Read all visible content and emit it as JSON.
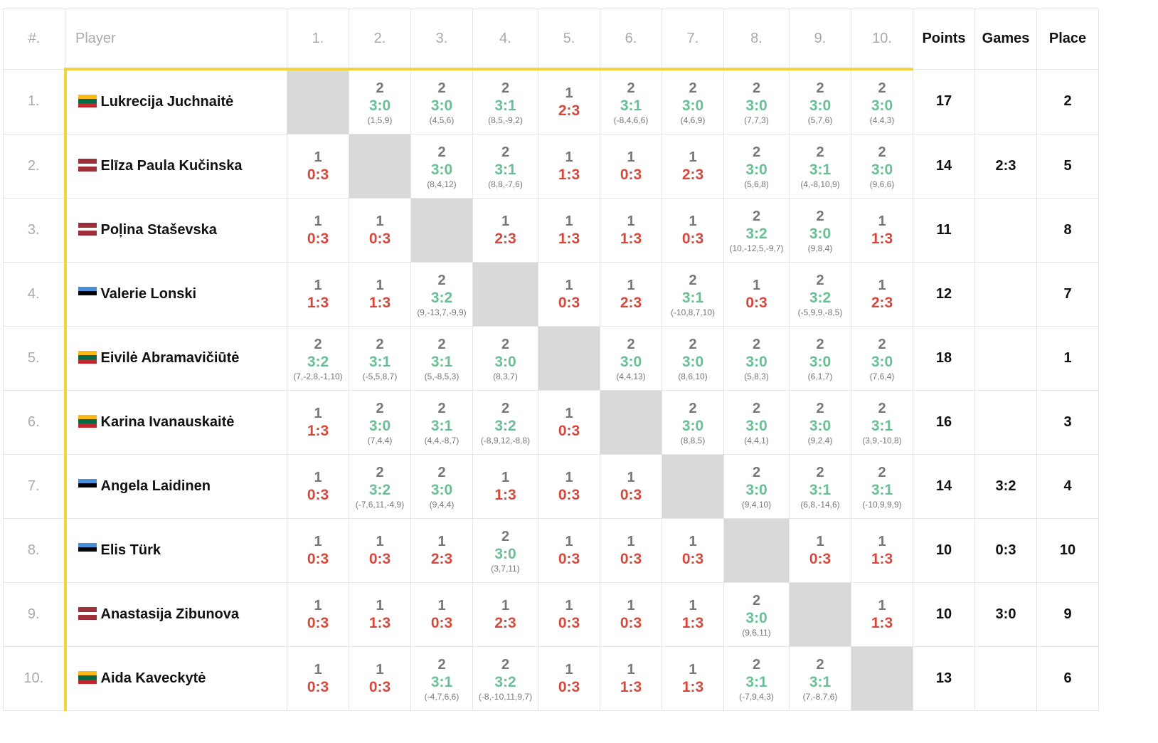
{
  "header": {
    "num": "#.",
    "player": "Player",
    "cols": [
      "1.",
      "2.",
      "3.",
      "4.",
      "5.",
      "6.",
      "7.",
      "8.",
      "9.",
      "10."
    ],
    "points": "Points",
    "games": "Games",
    "place": "Place"
  },
  "colors": {
    "win": "#6cbf94",
    "loss": "#d6483b",
    "highlight": "#f2d53c",
    "diagonal": "#d9d9d9"
  },
  "rows": [
    {
      "num": "1.",
      "name": "Lukrecija Juchnaitė",
      "flag": "lithuania-flag",
      "results": [
        null,
        {
          "pts": "2",
          "score": "3:0",
          "sets": "(1,5,9)"
        },
        {
          "pts": "2",
          "score": "3:0",
          "sets": "(4,5,6)"
        },
        {
          "pts": "2",
          "score": "3:1",
          "sets": "(8,5,-9,2)"
        },
        {
          "pts": "1",
          "score": "2:3",
          "sets": ""
        },
        {
          "pts": "2",
          "score": "3:1",
          "sets": "(-8,4,6,6)"
        },
        {
          "pts": "2",
          "score": "3:0",
          "sets": "(4,6,9)"
        },
        {
          "pts": "2",
          "score": "3:0",
          "sets": "(7,7,3)"
        },
        {
          "pts": "2",
          "score": "3:0",
          "sets": "(5,7,6)"
        },
        {
          "pts": "2",
          "score": "3:0",
          "sets": "(4,4,3)"
        }
      ],
      "points": "17",
      "games": "",
      "place": "2"
    },
    {
      "num": "2.",
      "name": "Elīza Paula Kučinska",
      "flag": "latvia-flag",
      "results": [
        {
          "pts": "1",
          "score": "0:3",
          "sets": ""
        },
        null,
        {
          "pts": "2",
          "score": "3:0",
          "sets": "(8,4,12)"
        },
        {
          "pts": "2",
          "score": "3:1",
          "sets": "(8,8,-7,6)"
        },
        {
          "pts": "1",
          "score": "1:3",
          "sets": ""
        },
        {
          "pts": "1",
          "score": "0:3",
          "sets": ""
        },
        {
          "pts": "1",
          "score": "2:3",
          "sets": ""
        },
        {
          "pts": "2",
          "score": "3:0",
          "sets": "(5,6,8)"
        },
        {
          "pts": "2",
          "score": "3:1",
          "sets": "(4,-8,10,9)"
        },
        {
          "pts": "2",
          "score": "3:0",
          "sets": "(9,6,6)"
        }
      ],
      "points": "14",
      "games": "2:3",
      "place": "5"
    },
    {
      "num": "3.",
      "name": "Poļina Staševska",
      "flag": "latvia-flag",
      "results": [
        {
          "pts": "1",
          "score": "0:3",
          "sets": ""
        },
        {
          "pts": "1",
          "score": "0:3",
          "sets": ""
        },
        null,
        {
          "pts": "1",
          "score": "2:3",
          "sets": ""
        },
        {
          "pts": "1",
          "score": "1:3",
          "sets": ""
        },
        {
          "pts": "1",
          "score": "1:3",
          "sets": ""
        },
        {
          "pts": "1",
          "score": "0:3",
          "sets": ""
        },
        {
          "pts": "2",
          "score": "3:2",
          "sets": "(10,-12,5,-9,7)"
        },
        {
          "pts": "2",
          "score": "3:0",
          "sets": "(9,8,4)"
        },
        {
          "pts": "1",
          "score": "1:3",
          "sets": ""
        }
      ],
      "points": "11",
      "games": "",
      "place": "8"
    },
    {
      "num": "4.",
      "name": "Valerie Lonski",
      "flag": "estonia-flag",
      "results": [
        {
          "pts": "1",
          "score": "1:3",
          "sets": ""
        },
        {
          "pts": "1",
          "score": "1:3",
          "sets": ""
        },
        {
          "pts": "2",
          "score": "3:2",
          "sets": "(9,-13,7,-9,9)"
        },
        null,
        {
          "pts": "1",
          "score": "0:3",
          "sets": ""
        },
        {
          "pts": "1",
          "score": "2:3",
          "sets": ""
        },
        {
          "pts": "2",
          "score": "3:1",
          "sets": "(-10,8,7,10)"
        },
        {
          "pts": "1",
          "score": "0:3",
          "sets": ""
        },
        {
          "pts": "2",
          "score": "3:2",
          "sets": "(-5,9,9,-8,5)"
        },
        {
          "pts": "1",
          "score": "2:3",
          "sets": ""
        }
      ],
      "points": "12",
      "games": "",
      "place": "7"
    },
    {
      "num": "5.",
      "name": "Eivilė Abramavičiūtė",
      "flag": "lithuania-flag",
      "results": [
        {
          "pts": "2",
          "score": "3:2",
          "sets": "(7,-2,8,-1,10)"
        },
        {
          "pts": "2",
          "score": "3:1",
          "sets": "(-5,5,8,7)"
        },
        {
          "pts": "2",
          "score": "3:1",
          "sets": "(5,-8,5,3)"
        },
        {
          "pts": "2",
          "score": "3:0",
          "sets": "(8,3,7)"
        },
        null,
        {
          "pts": "2",
          "score": "3:0",
          "sets": "(4,4,13)"
        },
        {
          "pts": "2",
          "score": "3:0",
          "sets": "(8,6,10)"
        },
        {
          "pts": "2",
          "score": "3:0",
          "sets": "(5,8,3)"
        },
        {
          "pts": "2",
          "score": "3:0",
          "sets": "(6,1,7)"
        },
        {
          "pts": "2",
          "score": "3:0",
          "sets": "(7,6,4)"
        }
      ],
      "points": "18",
      "games": "",
      "place": "1"
    },
    {
      "num": "6.",
      "name": "Karina Ivanauskaitė",
      "flag": "lithuania-flag",
      "results": [
        {
          "pts": "1",
          "score": "1:3",
          "sets": ""
        },
        {
          "pts": "2",
          "score": "3:0",
          "sets": "(7,4,4)"
        },
        {
          "pts": "2",
          "score": "3:1",
          "sets": "(4,4,-8,7)"
        },
        {
          "pts": "2",
          "score": "3:2",
          "sets": "(-8,9,12,-8,8)"
        },
        {
          "pts": "1",
          "score": "0:3",
          "sets": ""
        },
        null,
        {
          "pts": "2",
          "score": "3:0",
          "sets": "(8,8,5)"
        },
        {
          "pts": "2",
          "score": "3:0",
          "sets": "(4,4,1)"
        },
        {
          "pts": "2",
          "score": "3:0",
          "sets": "(9,2,4)"
        },
        {
          "pts": "2",
          "score": "3:1",
          "sets": "(3,9,-10,8)"
        }
      ],
      "points": "16",
      "games": "",
      "place": "3"
    },
    {
      "num": "7.",
      "name": "Angela Laidinen",
      "flag": "estonia-flag",
      "results": [
        {
          "pts": "1",
          "score": "0:3",
          "sets": ""
        },
        {
          "pts": "2",
          "score": "3:2",
          "sets": "(-7,6,11,-4,9)"
        },
        {
          "pts": "2",
          "score": "3:0",
          "sets": "(9,4,4)"
        },
        {
          "pts": "1",
          "score": "1:3",
          "sets": ""
        },
        {
          "pts": "1",
          "score": "0:3",
          "sets": ""
        },
        {
          "pts": "1",
          "score": "0:3",
          "sets": ""
        },
        null,
        {
          "pts": "2",
          "score": "3:0",
          "sets": "(9,4,10)"
        },
        {
          "pts": "2",
          "score": "3:1",
          "sets": "(6,8,-14,6)"
        },
        {
          "pts": "2",
          "score": "3:1",
          "sets": "(-10,9,9,9)"
        }
      ],
      "points": "14",
      "games": "3:2",
      "place": "4"
    },
    {
      "num": "8.",
      "name": "Elis Türk",
      "flag": "estonia-flag",
      "results": [
        {
          "pts": "1",
          "score": "0:3",
          "sets": ""
        },
        {
          "pts": "1",
          "score": "0:3",
          "sets": ""
        },
        {
          "pts": "1",
          "score": "2:3",
          "sets": ""
        },
        {
          "pts": "2",
          "score": "3:0",
          "sets": "(3,7,11)"
        },
        {
          "pts": "1",
          "score": "0:3",
          "sets": ""
        },
        {
          "pts": "1",
          "score": "0:3",
          "sets": ""
        },
        {
          "pts": "1",
          "score": "0:3",
          "sets": ""
        },
        null,
        {
          "pts": "1",
          "score": "0:3",
          "sets": ""
        },
        {
          "pts": "1",
          "score": "1:3",
          "sets": ""
        }
      ],
      "points": "10",
      "games": "0:3",
      "place": "10"
    },
    {
      "num": "9.",
      "name": "Anastasija Zibunova",
      "flag": "latvia-flag",
      "results": [
        {
          "pts": "1",
          "score": "0:3",
          "sets": ""
        },
        {
          "pts": "1",
          "score": "1:3",
          "sets": ""
        },
        {
          "pts": "1",
          "score": "0:3",
          "sets": ""
        },
        {
          "pts": "1",
          "score": "2:3",
          "sets": ""
        },
        {
          "pts": "1",
          "score": "0:3",
          "sets": ""
        },
        {
          "pts": "1",
          "score": "0:3",
          "sets": ""
        },
        {
          "pts": "1",
          "score": "1:3",
          "sets": ""
        },
        {
          "pts": "2",
          "score": "3:0",
          "sets": "(9,6,11)"
        },
        null,
        {
          "pts": "1",
          "score": "1:3",
          "sets": ""
        }
      ],
      "points": "10",
      "games": "3:0",
      "place": "9"
    },
    {
      "num": "10.",
      "name": "Aida Kaveckytė",
      "flag": "lithuania-flag",
      "results": [
        {
          "pts": "1",
          "score": "0:3",
          "sets": ""
        },
        {
          "pts": "1",
          "score": "0:3",
          "sets": ""
        },
        {
          "pts": "2",
          "score": "3:1",
          "sets": "(-4,7,6,6)"
        },
        {
          "pts": "2",
          "score": "3:2",
          "sets": "(-8,-10,11,9,7)"
        },
        {
          "pts": "1",
          "score": "0:3",
          "sets": ""
        },
        {
          "pts": "1",
          "score": "1:3",
          "sets": ""
        },
        {
          "pts": "1",
          "score": "1:3",
          "sets": ""
        },
        {
          "pts": "2",
          "score": "3:1",
          "sets": "(-7,9,4,3)"
        },
        {
          "pts": "2",
          "score": "3:1",
          "sets": "(7,-8,7,6)"
        },
        null
      ],
      "points": "13",
      "games": "",
      "place": "6"
    }
  ]
}
